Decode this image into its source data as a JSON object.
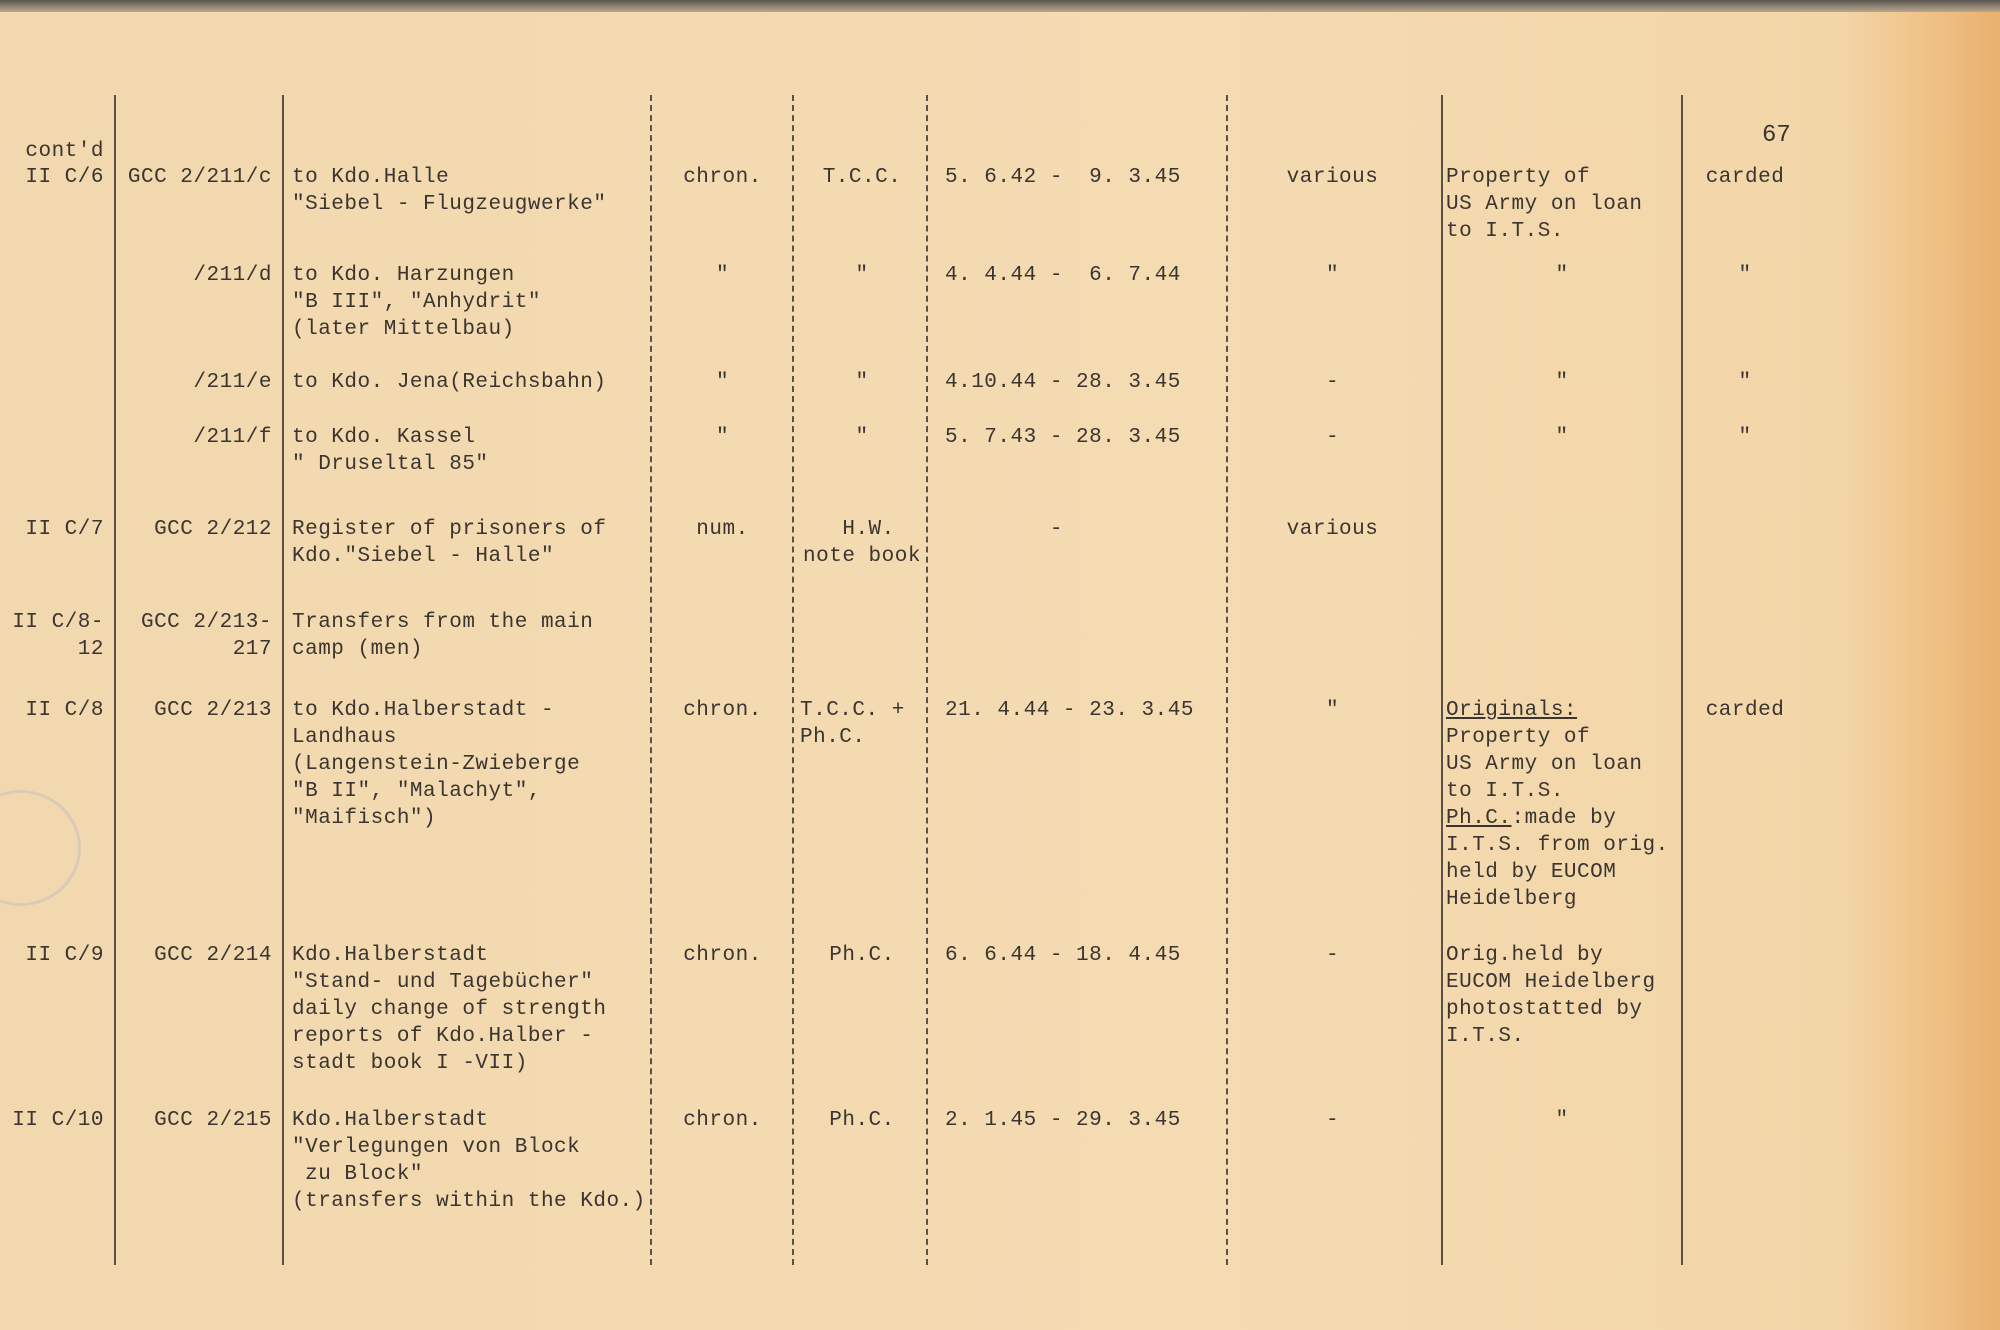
{
  "page_number": "67",
  "contd": "cont'd",
  "rows": [
    {
      "sig": "II C/6",
      "gcc": "GCC 2/211/c",
      "desc": "to Kdo.Halle\n\"Siebel - Flugzeugwerke\"",
      "arr": "chron.",
      "type": "T.C.C.",
      "dates": "5. 6.42 -  9. 3.45",
      "num": "various",
      "remarks": "Property of\nUS Army on loan\nto I.T.S.",
      "carded": "carded"
    },
    {
      "sig": "",
      "gcc": "/211/d",
      "desc": "to Kdo. Harzungen\n\"B III\", \"Anhydrit\"\n(later Mittelbau)",
      "arr": "\"",
      "type": "\"",
      "dates": "4. 4.44 -  6. 7.44",
      "num": "\"",
      "remarks": "\"",
      "carded": "\""
    },
    {
      "sig": "",
      "gcc": "/211/e",
      "desc": "to Kdo. Jena(Reichsbahn)",
      "arr": "\"",
      "type": "\"",
      "dates": "4.10.44 - 28. 3.45",
      "num": "-",
      "remarks": "\"",
      "carded": "\""
    },
    {
      "sig": "",
      "gcc": "/211/f",
      "desc": "to Kdo. Kassel\n\" Druseltal 85\"",
      "arr": "\"",
      "type": "\"",
      "dates": "5. 7.43 - 28. 3.45",
      "num": "-",
      "remarks": "\"",
      "carded": "\""
    },
    {
      "sig": "II C/7",
      "gcc": "GCC 2/212",
      "desc": "Register of prisoners of\nKdo.\"Siebel - Halle\"",
      "arr": "num.",
      "type": " H.W.\nnote book",
      "dates": "        -",
      "num": "various",
      "remarks": "",
      "carded": ""
    },
    {
      "sig": "II C/8-\n12",
      "gcc": "GCC 2/213-\n217",
      "desc": "Transfers from the main\ncamp (men)",
      "arr": "",
      "type": "",
      "dates": "",
      "num": "",
      "remarks": "",
      "carded": ""
    },
    {
      "sig": "II C/8",
      "gcc": "GCC 2/213",
      "desc": "to Kdo.Halberstadt -\nLandhaus\n(Langenstein-Zwieberge\n\"B II\", \"Malachyt\",\n\"Maifisch\")",
      "arr": "chron.",
      "type": "T.C.C. +\nPh.C.",
      "dates": "21. 4.44 - 23. 3.45",
      "num": "\"",
      "remarks_head": "Originals:",
      "remarks": "Property of\nUS Army on loan\nto I.T.S.",
      "remarks_head2": "Ph.C.",
      "remarks2": ":made by\nI.T.S. from orig.\nheld by EUCOM\nHeidelberg",
      "carded": "carded"
    },
    {
      "sig": "II C/9",
      "gcc": "GCC 2/214",
      "desc": "Kdo.Halberstadt\n\"Stand- und Tagebücher\"\ndaily change of strength\nreports of Kdo.Halber -\nstadt book I -VII)",
      "arr": "chron.",
      "type": "Ph.C.",
      "dates": "6. 6.44 - 18. 4.45",
      "num": "-",
      "remarks": "Orig.held by\nEUCOM Heidelberg\nphotostatted by\nI.T.S.",
      "carded": ""
    },
    {
      "sig": "II C/10",
      "gcc": "GCC 2/215",
      "desc": "Kdo.Halberstadt\n\"Verlegungen von Block\n zu Block\"\n(transfers within the Kdo.)",
      "arr": "chron.",
      "type": "Ph.C.",
      "dates": "2. 1.45 - 29. 3.45",
      "num": "-",
      "remarks": "\"",
      "carded": ""
    }
  ]
}
